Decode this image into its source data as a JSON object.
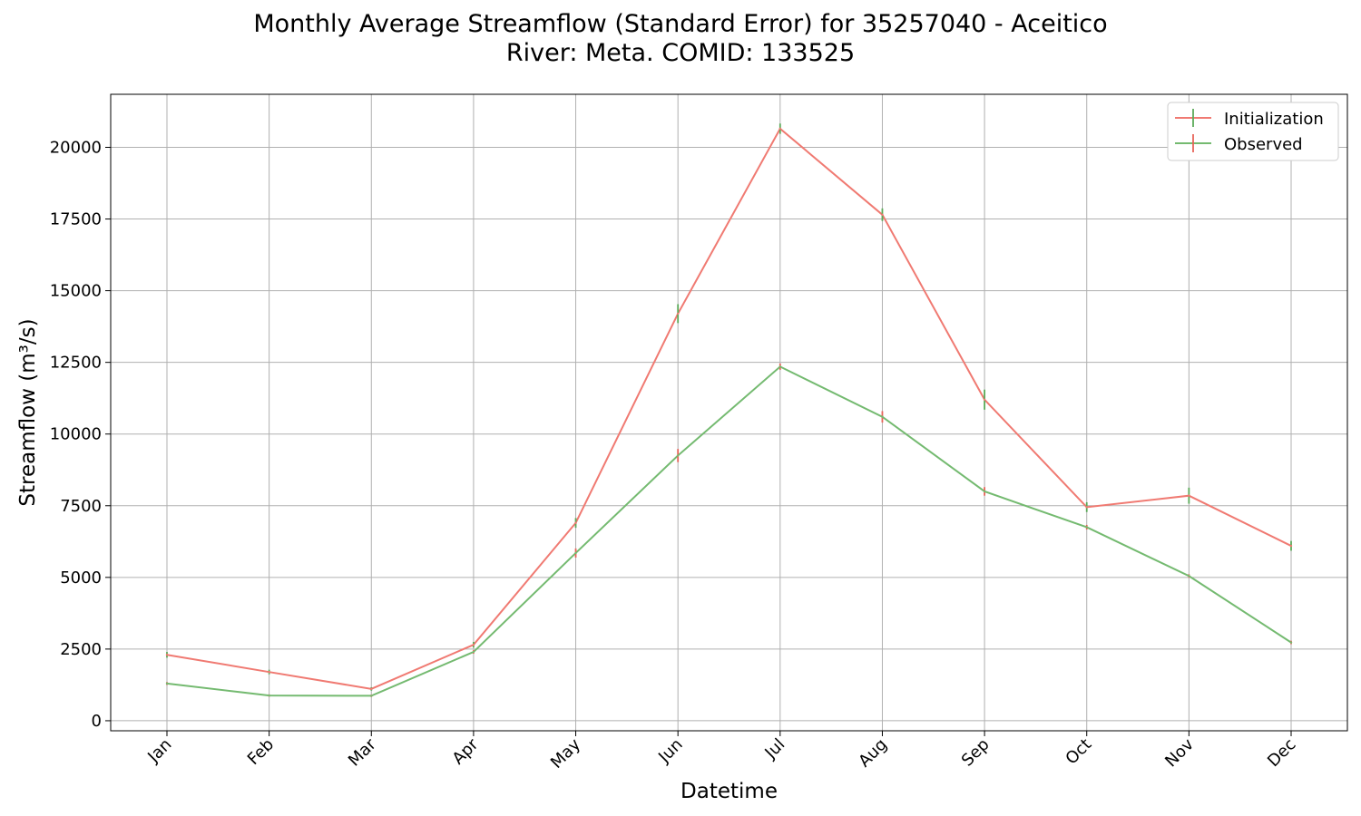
{
  "chart_data": {
    "type": "line",
    "title": "Monthly Average Streamflow (Standard Error) for 35257040 - Aceitico",
    "subtitle": "River: Meta. COMID: 133525",
    "xlabel": "Datetime",
    "ylabel": "Streamflow (m³/s)",
    "categories": [
      "Jan",
      "Feb",
      "Mar",
      "Apr",
      "May",
      "Jun",
      "Jul",
      "Aug",
      "Sep",
      "Oct",
      "Nov",
      "Dec"
    ],
    "ylim": [
      -350,
      21850
    ],
    "yticks": [
      0,
      2500,
      5000,
      7500,
      10000,
      12500,
      15000,
      17500,
      20000
    ],
    "grid": true,
    "legend_position": "top-right",
    "series": [
      {
        "name": "Initialization",
        "line_color": "#f07a72",
        "errorbar_color": "#5cab5a",
        "values": [
          2300,
          1700,
          1110,
          2650,
          6900,
          14200,
          20650,
          17650,
          11200,
          7450,
          7850,
          6100
        ],
        "errors": [
          100,
          80,
          60,
          100,
          170,
          330,
          180,
          220,
          350,
          170,
          280,
          170
        ]
      },
      {
        "name": "Observed",
        "line_color": "#74ba70",
        "errorbar_color": "#e8645a",
        "values": [
          1300,
          880,
          870,
          2400,
          5850,
          9250,
          12350,
          10600,
          8000,
          6750,
          5050,
          2730
        ],
        "errors": [
          50,
          40,
          40,
          60,
          160,
          230,
          110,
          200,
          150,
          80,
          60,
          60
        ]
      }
    ]
  }
}
